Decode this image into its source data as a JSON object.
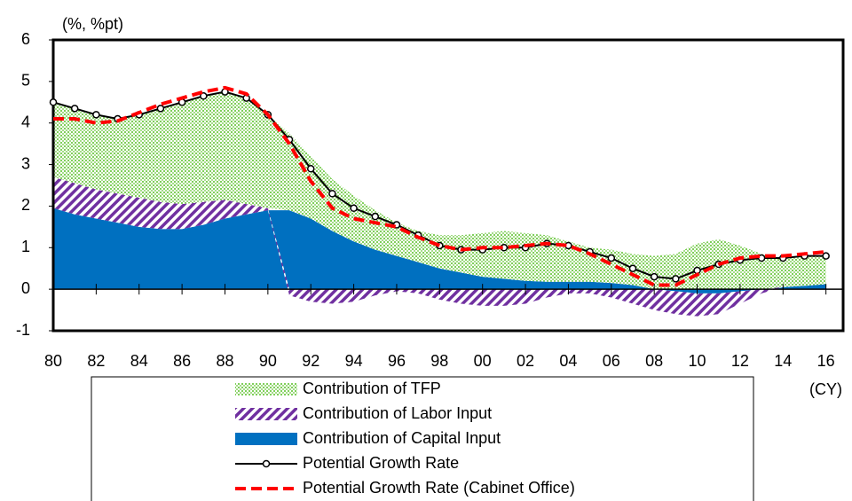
{
  "chart_data": {
    "type": "stacked_area_line",
    "y_unit": "(%, %pt)",
    "x_unit": "(CY)",
    "x": [
      1980,
      1981,
      1982,
      1983,
      1984,
      1985,
      1986,
      1987,
      1988,
      1989,
      1990,
      1991,
      1992,
      1993,
      1994,
      1995,
      1996,
      1997,
      1998,
      1999,
      2000,
      2001,
      2002,
      2003,
      2004,
      2005,
      2006,
      2007,
      2008,
      2009,
      2010,
      2011,
      2012,
      2013,
      2014,
      2015,
      2016
    ],
    "xlim": [
      1980,
      2016.8
    ],
    "xticks": [
      {
        "value": 1980,
        "label": "80"
      },
      {
        "value": 1982,
        "label": "82"
      },
      {
        "value": 1984,
        "label": "84"
      },
      {
        "value": 1986,
        "label": "86"
      },
      {
        "value": 1988,
        "label": "88"
      },
      {
        "value": 1990,
        "label": "90"
      },
      {
        "value": 1992,
        "label": "92"
      },
      {
        "value": 1994,
        "label": "94"
      },
      {
        "value": 1996,
        "label": "96"
      },
      {
        "value": 1998,
        "label": "98"
      },
      {
        "value": 2000,
        "label": "00"
      },
      {
        "value": 2002,
        "label": "02"
      },
      {
        "value": 2004,
        "label": "04"
      },
      {
        "value": 2006,
        "label": "06"
      },
      {
        "value": 2008,
        "label": "08"
      },
      {
        "value": 2010,
        "label": "10"
      },
      {
        "value": 2012,
        "label": "12"
      },
      {
        "value": 2014,
        "label": "14"
      },
      {
        "value": 2016,
        "label": "16"
      }
    ],
    "ylim": [
      -1,
      6
    ],
    "yticks": [
      -1,
      0,
      1,
      2,
      3,
      4,
      5,
      6
    ],
    "series": [
      {
        "name": "Contribution of TFP",
        "kind": "area",
        "pattern": "dots",
        "color": "#7fcf5a",
        "values": [
          1.8,
          1.8,
          1.8,
          1.8,
          2.0,
          2.25,
          2.45,
          2.55,
          2.6,
          2.55,
          2.25,
          1.85,
          1.5,
          1.25,
          1.1,
          0.95,
          0.8,
          0.75,
          0.8,
          0.9,
          1.05,
          1.15,
          1.15,
          1.12,
          0.97,
          0.82,
          0.8,
          0.75,
          0.8,
          0.85,
          1.1,
          1.2,
          1.05,
          0.85,
          0.7,
          0.72,
          0.68
        ]
      },
      {
        "name": "Contribution of Labor Input",
        "kind": "area",
        "pattern": "stripes",
        "color": "#7030a0",
        "values": [
          0.75,
          0.75,
          0.7,
          0.7,
          0.7,
          0.65,
          0.6,
          0.55,
          0.45,
          0.25,
          0.05,
          -0.15,
          -0.3,
          -0.35,
          -0.3,
          -0.15,
          -0.05,
          -0.1,
          -0.25,
          -0.35,
          -0.4,
          -0.4,
          -0.35,
          -0.2,
          -0.1,
          -0.1,
          -0.2,
          -0.35,
          -0.5,
          -0.55,
          -0.55,
          -0.5,
          -0.3,
          -0.1,
          0,
          0,
          0
        ]
      },
      {
        "name": "Contribution of Capital Input",
        "kind": "area",
        "pattern": "solid",
        "color": "#0070c0",
        "values": [
          1.95,
          1.8,
          1.7,
          1.6,
          1.5,
          1.45,
          1.45,
          1.55,
          1.7,
          1.8,
          1.9,
          1.9,
          1.7,
          1.4,
          1.15,
          0.95,
          0.8,
          0.65,
          0.5,
          0.4,
          0.3,
          0.25,
          0.2,
          0.18,
          0.18,
          0.18,
          0.15,
          0.1,
          0,
          -0.05,
          -0.1,
          -0.1,
          -0.05,
          0,
          0.05,
          0.08,
          0.12
        ]
      },
      {
        "name": "Potential Growth Rate",
        "kind": "line",
        "marker": true,
        "color": "#000000",
        "values": [
          4.5,
          4.35,
          4.2,
          4.1,
          4.2,
          4.35,
          4.5,
          4.65,
          4.75,
          4.6,
          4.2,
          3.6,
          2.9,
          2.3,
          1.95,
          1.75,
          1.55,
          1.3,
          1.05,
          0.95,
          0.95,
          1.0,
          1.0,
          1.1,
          1.05,
          0.9,
          0.75,
          0.5,
          0.3,
          0.25,
          0.45,
          0.6,
          0.7,
          0.75,
          0.75,
          0.8,
          0.8
        ]
      },
      {
        "name": "Potential Growth Rate (Cabinet Office)",
        "kind": "line",
        "dashed": true,
        "color": "#ff0000",
        "values": [
          4.1,
          4.1,
          4.0,
          4.05,
          4.25,
          4.45,
          4.6,
          4.75,
          4.85,
          4.7,
          4.2,
          3.5,
          2.6,
          1.95,
          1.7,
          1.6,
          1.5,
          1.25,
          1.05,
          0.95,
          1.0,
          1.0,
          1.05,
          1.1,
          1.05,
          0.85,
          0.6,
          0.35,
          0.1,
          0.1,
          0.35,
          0.6,
          0.75,
          0.8,
          0.8,
          0.85,
          0.9
        ]
      }
    ],
    "stack_order": [
      2,
      1,
      0
    ]
  }
}
